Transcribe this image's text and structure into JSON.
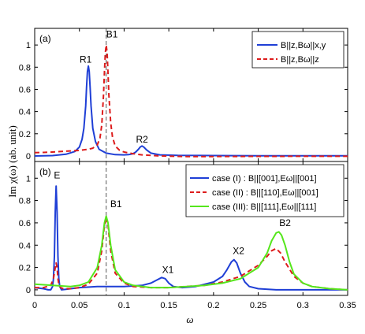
{
  "figure": {
    "ylabel": "Im χ(ω) (ab. unit)",
    "xlabel": "ω",
    "x_ticks": [
      "0",
      "0.05",
      "0.1",
      "0.15",
      "0.2",
      "0.25",
      "0.3",
      "0.35"
    ]
  },
  "chart_data": [
    {
      "type": "line",
      "panel_label": "(a)",
      "xlim": [
        0,
        0.35
      ],
      "ylim": [
        -0.05,
        1.15
      ],
      "y_ticks": [
        "0",
        "0.2",
        "0.4",
        "0.6",
        "0.8",
        "1"
      ],
      "grid": false,
      "legend_position": "top-right",
      "vline_x": 0.08,
      "annotations": [
        {
          "text": "R1",
          "x": 0.057,
          "y": 0.84
        },
        {
          "text": "B1",
          "x": 0.0865,
          "y": 1.07
        },
        {
          "text": "R2",
          "x": 0.12,
          "y": 0.12
        }
      ],
      "series": [
        {
          "name": "B||z,Bω||x,y",
          "color": "#1f3fd6",
          "style": "solid",
          "x": [
            0,
            0.02,
            0.035,
            0.045,
            0.05,
            0.053,
            0.055,
            0.057,
            0.058,
            0.059,
            0.06,
            0.061,
            0.062,
            0.063,
            0.065,
            0.068,
            0.072,
            0.08,
            0.09,
            0.1,
            0.105,
            0.11,
            0.113,
            0.116,
            0.118,
            0.12,
            0.122,
            0.125,
            0.13,
            0.14,
            0.16,
            0.2,
            0.25,
            0.3,
            0.35
          ],
          "y": [
            0.0,
            0.003,
            0.015,
            0.04,
            0.08,
            0.15,
            0.25,
            0.45,
            0.62,
            0.76,
            0.81,
            0.76,
            0.62,
            0.45,
            0.25,
            0.13,
            0.06,
            0.025,
            0.012,
            0.01,
            0.012,
            0.02,
            0.035,
            0.06,
            0.08,
            0.09,
            0.08,
            0.055,
            0.025,
            0.01,
            0.005,
            0.003,
            0.002,
            0.002,
            0.002
          ]
        },
        {
          "name": "B||z,Bω||z",
          "color": "#dd1c1c",
          "style": "dashed",
          "x": [
            0,
            0.01,
            0.02,
            0.03,
            0.04,
            0.05,
            0.06,
            0.065,
            0.07,
            0.073,
            0.075,
            0.077,
            0.078,
            0.079,
            0.08,
            0.081,
            0.082,
            0.083,
            0.085,
            0.087,
            0.09,
            0.095,
            0.1,
            0.11,
            0.12,
            0.14,
            0.17,
            0.2,
            0.25,
            0.3,
            0.35
          ],
          "y": [
            0.03,
            0.032,
            0.035,
            0.04,
            0.045,
            0.05,
            0.06,
            0.07,
            0.1,
            0.16,
            0.28,
            0.55,
            0.76,
            0.93,
            1.0,
            0.93,
            0.75,
            0.55,
            0.3,
            0.17,
            0.09,
            0.05,
            0.035,
            0.02,
            0.01,
            0.0,
            -0.005,
            -0.005,
            -0.004,
            -0.003,
            -0.003
          ]
        }
      ]
    },
    {
      "type": "line",
      "panel_label": "(b)",
      "xlim": [
        0,
        0.35
      ],
      "ylim": [
        -0.05,
        1.15
      ],
      "y_ticks": [
        "0",
        "0.2",
        "0.4",
        "0.6",
        "0.8",
        "1"
      ],
      "grid": false,
      "legend_position": "top-right",
      "vline_x": 0.08,
      "annotations": [
        {
          "text": "E",
          "x": 0.025,
          "y": 1.0
        },
        {
          "text": "B1",
          "x": 0.091,
          "y": 0.74
        },
        {
          "text": "X1",
          "x": 0.149,
          "y": 0.15
        },
        {
          "text": "X2",
          "x": 0.228,
          "y": 0.32
        },
        {
          "text": "B2",
          "x": 0.28,
          "y": 0.57
        }
      ],
      "series": [
        {
          "name": "case (I)   : B||[001],Eω||[001]",
          "color": "#1f3fd6",
          "style": "solid",
          "x": [
            0,
            0.01,
            0.015,
            0.018,
            0.02,
            0.021,
            0.022,
            0.023,
            0.024,
            0.025,
            0.026,
            0.027,
            0.028,
            0.03,
            0.035,
            0.05,
            0.07,
            0.08,
            0.1,
            0.12,
            0.13,
            0.137,
            0.142,
            0.146,
            0.15,
            0.155,
            0.165,
            0.18,
            0.2,
            0.21,
            0.215,
            0.22,
            0.223,
            0.226,
            0.23,
            0.235,
            0.24,
            0.25,
            0.27,
            0.3,
            0.32,
            0.35
          ],
          "y": [
            0.02,
            0.01,
            0.0,
            0.0,
            0.03,
            0.1,
            0.3,
            0.7,
            0.93,
            0.7,
            0.3,
            0.1,
            0.03,
            0.0,
            0.005,
            0.02,
            0.03,
            0.03,
            0.03,
            0.04,
            0.06,
            0.09,
            0.11,
            0.1,
            0.06,
            0.03,
            0.02,
            0.03,
            0.07,
            0.12,
            0.18,
            0.25,
            0.27,
            0.24,
            0.15,
            0.07,
            0.03,
            0.01,
            0.0,
            0.0,
            0.0,
            0.0
          ]
        },
        {
          "name": "case (II) : B||[110],Eω||[001]",
          "color": "#dd1c1c",
          "style": "dashed",
          "x": [
            0,
            0.01,
            0.018,
            0.021,
            0.023,
            0.024,
            0.025,
            0.026,
            0.027,
            0.029,
            0.032,
            0.04,
            0.05,
            0.06,
            0.07,
            0.075,
            0.078,
            0.08,
            0.082,
            0.085,
            0.09,
            0.1,
            0.11,
            0.13,
            0.15,
            0.17,
            0.19,
            0.21,
            0.23,
            0.25,
            0.26,
            0.265,
            0.27,
            0.275,
            0.28,
            0.29,
            0.3,
            0.31,
            0.33,
            0.35
          ],
          "y": [
            0.02,
            0.02,
            0.04,
            0.1,
            0.2,
            0.24,
            0.2,
            0.1,
            0.05,
            0.02,
            0.01,
            0.01,
            0.02,
            0.05,
            0.15,
            0.35,
            0.58,
            0.62,
            0.58,
            0.35,
            0.15,
            0.06,
            0.03,
            0.02,
            0.02,
            0.03,
            0.04,
            0.07,
            0.12,
            0.22,
            0.3,
            0.35,
            0.37,
            0.33,
            0.25,
            0.12,
            0.06,
            0.03,
            0.01,
            0.0
          ]
        },
        {
          "name": "case (III): B||[111],Eω||[111]",
          "color": "#55e61c",
          "style": "solid",
          "x": [
            0,
            0.02,
            0.04,
            0.05,
            0.06,
            0.07,
            0.075,
            0.078,
            0.08,
            0.082,
            0.085,
            0.09,
            0.1,
            0.11,
            0.13,
            0.15,
            0.17,
            0.19,
            0.21,
            0.23,
            0.25,
            0.26,
            0.265,
            0.27,
            0.273,
            0.276,
            0.28,
            0.285,
            0.29,
            0.3,
            0.31,
            0.33,
            0.35
          ],
          "y": [
            0.05,
            0.04,
            0.03,
            0.04,
            0.07,
            0.2,
            0.4,
            0.6,
            0.66,
            0.6,
            0.4,
            0.18,
            0.07,
            0.04,
            0.02,
            0.02,
            0.03,
            0.04,
            0.06,
            0.1,
            0.2,
            0.33,
            0.44,
            0.51,
            0.52,
            0.49,
            0.4,
            0.25,
            0.14,
            0.06,
            0.03,
            0.01,
            0.0
          ]
        }
      ]
    }
  ]
}
